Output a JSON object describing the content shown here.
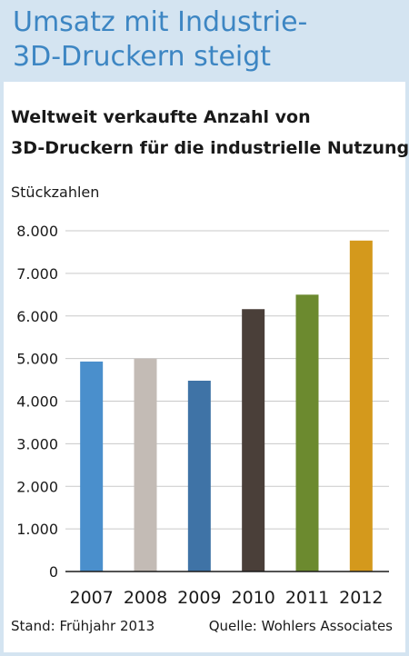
{
  "header": {
    "headline_line1": "Umsatz mit Industrie-",
    "headline_line2": "3D-Druckern steigt"
  },
  "chart_data": {
    "type": "bar",
    "title_line1": "Weltweit verkaufte Anzahl von",
    "title_line2": "3D-Druckern für die industrielle Nutzung",
    "ylabel": "Stückzahlen",
    "xlabel": "",
    "categories": [
      "2007",
      "2008",
      "2009",
      "2010",
      "2011",
      "2012"
    ],
    "values": [
      4930,
      5000,
      4480,
      6160,
      6500,
      7770
    ],
    "colors": [
      "#4a8fcc",
      "#c3bbb5",
      "#3f73a6",
      "#4a3f39",
      "#6c8a2f",
      "#d4991c"
    ],
    "ylim": [
      0,
      8000
    ],
    "yticks": [
      "0",
      "1.000",
      "2.000",
      "3.000",
      "4.000",
      "5.000",
      "6.000",
      "7.000",
      "8.000"
    ],
    "grid": true
  },
  "footer": {
    "stand": "Stand: Frühjahr 2013",
    "quelle": "Quelle: Wohlers Associates"
  }
}
